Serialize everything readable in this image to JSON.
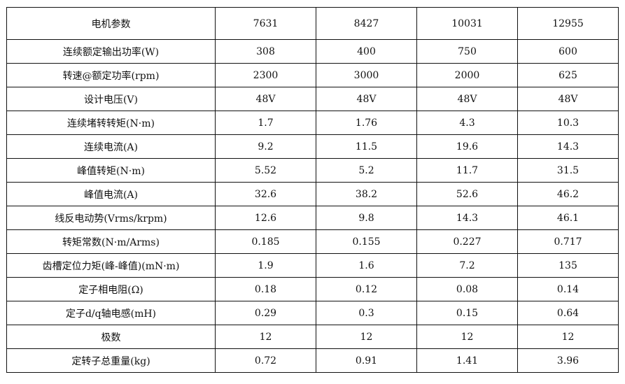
{
  "table": {
    "header": [
      "电机参数",
      "7631",
      "8427",
      "10031",
      "12955"
    ],
    "rows": [
      [
        "连续额定输出功率(W)",
        "308",
        "400",
        "750",
        "600"
      ],
      [
        "转速@额定功率(rpm)",
        "2300",
        "3000",
        "2000",
        "625"
      ],
      [
        "设计电压(V)",
        "48V",
        "48V",
        "48V",
        "48V"
      ],
      [
        "连续堵转转矩(N·m)",
        "1.7",
        "1.76",
        "4.3",
        "10.3"
      ],
      [
        "连续电流(A)",
        "9.2",
        "11.5",
        "19.6",
        "14.3"
      ],
      [
        "峰值转矩(N·m)",
        "5.52",
        "5.2",
        "11.7",
        "31.5"
      ],
      [
        "峰值电流(A)",
        "32.6",
        "38.2",
        "52.6",
        "46.2"
      ],
      [
        "线反电动势(Vrms/krpm)",
        "12.6",
        "9.8",
        "14.3",
        "46.1"
      ],
      [
        "转矩常数(N·m/Arms)",
        "0.185",
        "0.155",
        "0.227",
        "0.717"
      ],
      [
        "齿槽定位力矩(峰-峰值)(mN·m)",
        "1.9",
        "1.6",
        "7.2",
        "135"
      ],
      [
        "定子相电阻(Ω)",
        "0.18",
        "0.12",
        "0.08",
        "0.14"
      ],
      [
        "定子d/q轴电感(mH)",
        "0.29",
        "0.3",
        "0.15",
        "0.64"
      ],
      [
        "极数",
        "12",
        "12",
        "12",
        "12"
      ],
      [
        "定转子总重量(kg)",
        "0.72",
        "0.91",
        "1.41",
        "3.96"
      ]
    ]
  }
}
